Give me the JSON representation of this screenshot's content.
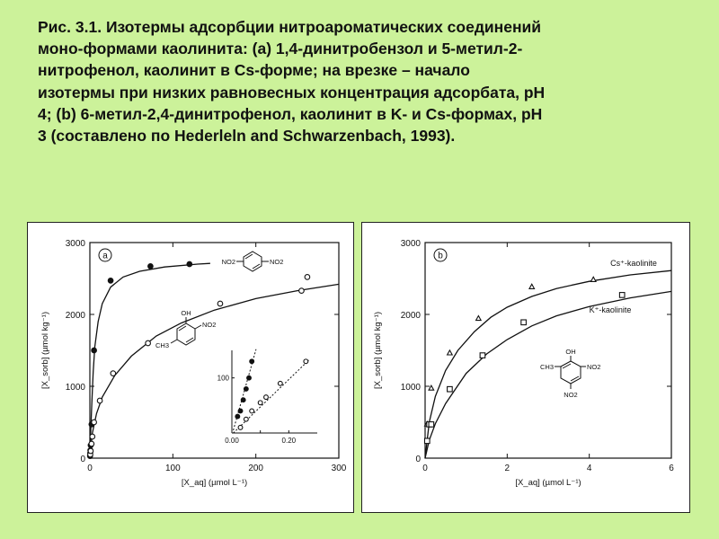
{
  "caption_lines": [
    "Рис. 3.1. Изотермы адсорбции нитроароматических соединений",
    "моно-формами каолинита: (а) 1,4-динитробензол и 5-метил-2-",
    "нитрофенол, каолинит в Cs-форме; на врезке – начало",
    "изотермы при низких равновесных концентрация адсорбата, pH",
    "4; (b) 6-метил-2,4-динитрофенол, каолинит в K- и Cs-формах, pH",
    "3 (составлено по  Hederleln and Schwarzenbach, 1993)."
  ],
  "chart_data": [
    {
      "type": "scatter",
      "panel_label": "a",
      "xlabel": "[X_aq]  (µmol L⁻¹)",
      "ylabel": "[X_sorb]  (µmol kg⁻¹)",
      "xlim": [
        0,
        300
      ],
      "ylim": [
        0,
        3000
      ],
      "xticks": [
        0,
        100,
        200,
        300
      ],
      "yticks": [
        0,
        1000,
        2000,
        3000
      ],
      "series": [
        {
          "marker": "filled-circle",
          "points": [
            [
              0.2,
              30
            ],
            [
              0.4,
              70
            ],
            [
              0.6,
              110
            ],
            [
              1,
              180
            ],
            [
              2,
              470
            ],
            [
              5,
              1500
            ],
            [
              25,
              2470
            ],
            [
              73,
              2670
            ],
            [
              120,
              2700
            ]
          ],
          "fit_line": [
            [
              0,
              0
            ],
            [
              1,
              350
            ],
            [
              2,
              650
            ],
            [
              3,
              950
            ],
            [
              4,
              1200
            ],
            [
              6,
              1550
            ],
            [
              10,
              1900
            ],
            [
              15,
              2150
            ],
            [
              25,
              2380
            ],
            [
              40,
              2520
            ],
            [
              60,
              2600
            ],
            [
              90,
              2660
            ],
            [
              130,
              2700
            ],
            [
              145,
              2710
            ]
          ]
        },
        {
          "marker": "open-circle",
          "points": [
            [
              0.5,
              50
            ],
            [
              1,
              100
            ],
            [
              2,
              200
            ],
            [
              3,
              300
            ],
            [
              5,
              500
            ],
            [
              12,
              800
            ],
            [
              28,
              1180
            ],
            [
              70,
              1600
            ],
            [
              157,
              2150
            ],
            [
              255,
              2330
            ],
            [
              262,
              2520
            ]
          ],
          "fit_line": [
            [
              0,
              0
            ],
            [
              3,
              350
            ],
            [
              8,
              620
            ],
            [
              15,
              850
            ],
            [
              30,
              1150
            ],
            [
              50,
              1420
            ],
            [
              80,
              1700
            ],
            [
              110,
              1880
            ],
            [
              150,
              2060
            ],
            [
              200,
              2220
            ],
            [
              250,
              2330
            ],
            [
              300,
              2420
            ]
          ]
        }
      ],
      "inset": {
        "xlim": [
          0,
          0.3
        ],
        "ylim": [
          0,
          150
        ],
        "xticks": [
          "0.00",
          "0.20"
        ],
        "yticks": [
          "100"
        ],
        "filled_points": [
          [
            0.02,
            30
          ],
          [
            0.03,
            40
          ],
          [
            0.04,
            60
          ],
          [
            0.05,
            80
          ],
          [
            0.06,
            100
          ],
          [
            0.07,
            130
          ]
        ],
        "open_points": [
          [
            0.03,
            10
          ],
          [
            0.05,
            25
          ],
          [
            0.07,
            40
          ],
          [
            0.1,
            55
          ],
          [
            0.12,
            65
          ],
          [
            0.17,
            90
          ],
          [
            0.26,
            130
          ]
        ]
      },
      "structure_labels": [
        "NO2",
        "NO2",
        "OH",
        "NO2",
        "CH3"
      ]
    },
    {
      "type": "scatter",
      "panel_label": "b",
      "xlabel": "[X_aq]  (µmol L⁻¹)",
      "ylabel": "[X_sorb]  (µmol kg⁻¹)",
      "xlim": [
        0,
        6
      ],
      "ylim": [
        0,
        3000
      ],
      "xticks": [
        0,
        2,
        4,
        6
      ],
      "yticks": [
        0,
        1000,
        2000,
        3000
      ],
      "series": [
        {
          "name": "Cs⁺-kaolinite",
          "marker": "open-triangle",
          "points": [
            [
              0.05,
              470
            ],
            [
              0.15,
              970
            ],
            [
              0.6,
              1460
            ],
            [
              1.3,
              1940
            ],
            [
              2.6,
              2380
            ],
            [
              4.1,
              2480
            ]
          ],
          "fit_line": [
            [
              0,
              0
            ],
            [
              0.1,
              500
            ],
            [
              0.25,
              860
            ],
            [
              0.5,
              1220
            ],
            [
              0.8,
              1500
            ],
            [
              1.2,
              1760
            ],
            [
              1.6,
              1960
            ],
            [
              2,
              2100
            ],
            [
              2.6,
              2250
            ],
            [
              3.2,
              2360
            ],
            [
              4,
              2460
            ],
            [
              5,
              2550
            ],
            [
              6,
              2610
            ]
          ]
        },
        {
          "name": "K⁺-kaolinite",
          "marker": "open-square",
          "points": [
            [
              0.05,
              240
            ],
            [
              0.1,
              470
            ],
            [
              0.15,
              470
            ],
            [
              0.6,
              960
            ],
            [
              1.4,
              1430
            ],
            [
              2.4,
              1890
            ],
            [
              4.8,
              2270
            ]
          ],
          "fit_line": [
            [
              0,
              0
            ],
            [
              0.1,
              250
            ],
            [
              0.25,
              480
            ],
            [
              0.5,
              760
            ],
            [
              1,
              1180
            ],
            [
              1.5,
              1450
            ],
            [
              2,
              1650
            ],
            [
              2.6,
              1840
            ],
            [
              3.2,
              1980
            ],
            [
              4,
              2110
            ],
            [
              5,
              2230
            ],
            [
              6,
              2320
            ]
          ]
        }
      ],
      "structure_labels": [
        "CH3",
        "OH",
        "NO2",
        "NO2"
      ]
    }
  ]
}
